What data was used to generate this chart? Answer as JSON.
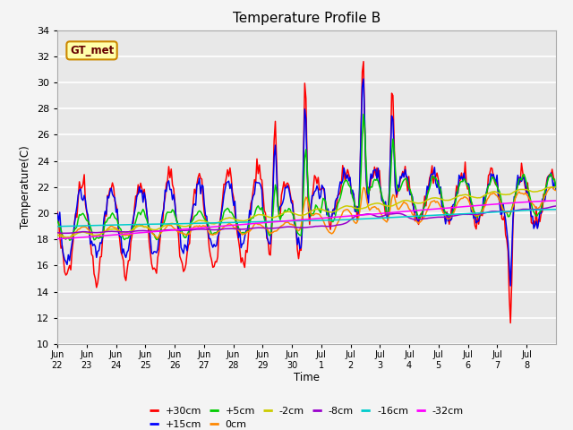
{
  "title": "Temperature Profile B",
  "xlabel": "Time",
  "ylabel": "Temperature(C)",
  "ylim": [
    10,
    34
  ],
  "yticks": [
    10,
    12,
    14,
    16,
    18,
    20,
    22,
    24,
    26,
    28,
    30,
    32,
    34
  ],
  "xtick_labels": [
    "Jun\n22",
    "Jun\n23",
    "Jun\n24",
    "Jun\n25",
    "Jun\n26",
    "Jun\n27",
    "Jun\n28",
    "Jun\n29",
    "Jun\n30",
    "Jul\n1",
    "Jul\n2",
    "Jul\n3",
    "Jul\n4",
    "Jul\n5",
    "Jul\n6",
    "Jul\n7",
    "Jul\n8"
  ],
  "legend_entries": [
    {
      "label": "+30cm",
      "color": "#ff0000"
    },
    {
      "label": "+15cm",
      "color": "#0000ff"
    },
    {
      "label": "+5cm",
      "color": "#00cc00"
    },
    {
      "label": "0cm",
      "color": "#ff8800"
    },
    {
      "label": "-2cm",
      "color": "#cccc00"
    },
    {
      "label": "-8cm",
      "color": "#9900cc"
    },
    {
      "label": "-16cm",
      "color": "#00cccc"
    },
    {
      "label": "-32cm",
      "color": "#ff00ff"
    }
  ],
  "background_color": "#e8e8e8",
  "grid_color": "#ffffff"
}
